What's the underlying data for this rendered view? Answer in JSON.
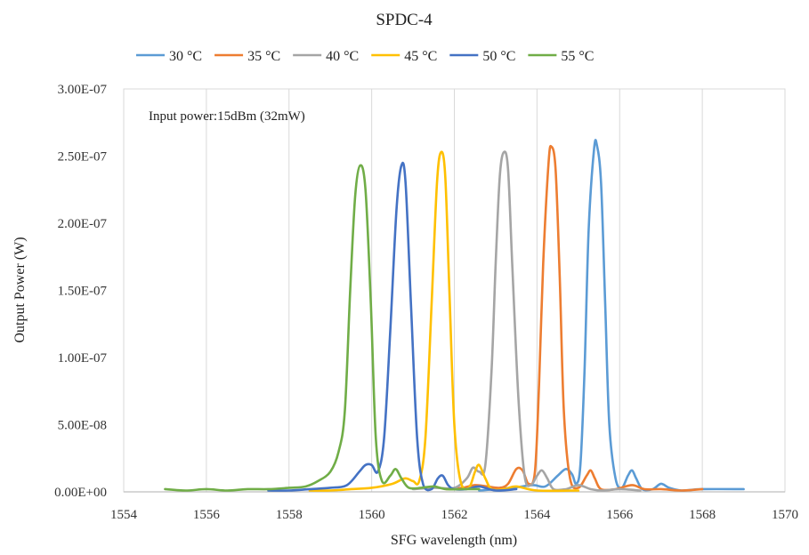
{
  "chart_data": {
    "type": "line",
    "title": "SPDC-4",
    "xlabel": "SFG wavelength (nm)",
    "ylabel": "Output Power (W)",
    "annotation": "Input power:15dBm (32mW)",
    "xlim": [
      1554,
      1570
    ],
    "ylim": [
      0,
      3e-07
    ],
    "xticks": [
      1554,
      1556,
      1558,
      1560,
      1562,
      1564,
      1566,
      1568,
      1570
    ],
    "xtick_labels": [
      "1554",
      "1556",
      "1558",
      "1560",
      "1562",
      "1564",
      "1566",
      "1568",
      "1570"
    ],
    "yticks": [
      0,
      5e-08,
      1e-07,
      1.5e-07,
      2e-07,
      2.5e-07,
      3e-07
    ],
    "ytick_labels": [
      "0.00E+00",
      "5.00E-08",
      "1.00E-07",
      "1.50E-07",
      "2.00E-07",
      "2.50E-07",
      "3.00E-07"
    ],
    "grid": "vertical",
    "legend_position": "top",
    "series": [
      {
        "name": "30 °C",
        "color": "#5b9bd5",
        "points": [
          [
            1562.6,
            1e-09
          ],
          [
            1563.4,
            3e-09
          ],
          [
            1563.9,
            5e-09
          ],
          [
            1564.2,
            4e-09
          ],
          [
            1564.5,
            1.2e-08
          ],
          [
            1564.7,
            1.7e-08
          ],
          [
            1564.85,
            1.3e-08
          ],
          [
            1564.95,
            6e-09
          ],
          [
            1565.05,
            2e-08
          ],
          [
            1565.15,
            9e-08
          ],
          [
            1565.25,
            1.95e-07
          ],
          [
            1565.38,
            2.55e-07
          ],
          [
            1565.45,
            2.58e-07
          ],
          [
            1565.55,
            2.3e-07
          ],
          [
            1565.65,
            1.4e-07
          ],
          [
            1565.75,
            5e-08
          ],
          [
            1565.9,
            1e-08
          ],
          [
            1566.05,
            3e-09
          ],
          [
            1566.2,
            1.2e-08
          ],
          [
            1566.3,
            1.6e-08
          ],
          [
            1566.4,
            1e-08
          ],
          [
            1566.55,
            2e-09
          ],
          [
            1566.8,
            2e-09
          ],
          [
            1567.0,
            6e-09
          ],
          [
            1567.2,
            3e-09
          ],
          [
            1567.5,
            1e-09
          ],
          [
            1568.0,
            2e-09
          ],
          [
            1569.0,
            2e-09
          ]
        ]
      },
      {
        "name": "35 °C",
        "color": "#ed7d31",
        "points": [
          [
            1561.8,
            2e-09
          ],
          [
            1562.2,
            3e-09
          ],
          [
            1562.5,
            5e-09
          ],
          [
            1562.8,
            4e-09
          ],
          [
            1563.1,
            3e-09
          ],
          [
            1563.3,
            6e-09
          ],
          [
            1563.5,
            1.7e-08
          ],
          [
            1563.65,
            1.6e-08
          ],
          [
            1563.8,
            6e-09
          ],
          [
            1563.95,
            1.5e-08
          ],
          [
            1564.05,
            8e-08
          ],
          [
            1564.15,
            1.7e-07
          ],
          [
            1564.28,
            2.45e-07
          ],
          [
            1564.35,
            2.57e-07
          ],
          [
            1564.45,
            2.4e-07
          ],
          [
            1564.55,
            1.6e-07
          ],
          [
            1564.65,
            6e-08
          ],
          [
            1564.8,
            1e-08
          ],
          [
            1565.0,
            3e-09
          ],
          [
            1565.2,
            1.2e-08
          ],
          [
            1565.3,
            1.6e-08
          ],
          [
            1565.4,
            1e-08
          ],
          [
            1565.55,
            2e-09
          ],
          [
            1565.9,
            2e-09
          ],
          [
            1566.3,
            5e-09
          ],
          [
            1566.6,
            2e-09
          ],
          [
            1567.0,
            2e-09
          ],
          [
            1567.5,
            1e-09
          ],
          [
            1568.0,
            2e-09
          ]
        ]
      },
      {
        "name": "40 °C",
        "color": "#a5a5a5",
        "points": [
          [
            1561.0,
            2e-09
          ],
          [
            1561.5,
            3e-09
          ],
          [
            1562.0,
            3e-09
          ],
          [
            1562.3,
            1e-08
          ],
          [
            1562.45,
            1.8e-08
          ],
          [
            1562.6,
            1.5e-08
          ],
          [
            1562.75,
            2e-08
          ],
          [
            1562.9,
            9e-08
          ],
          [
            1563.0,
            1.7e-07
          ],
          [
            1563.1,
            2.35e-07
          ],
          [
            1563.2,
            2.53e-07
          ],
          [
            1563.3,
            2.4e-07
          ],
          [
            1563.4,
            1.7e-07
          ],
          [
            1563.55,
            7e-08
          ],
          [
            1563.7,
            1.2e-08
          ],
          [
            1563.85,
            5e-09
          ],
          [
            1564.0,
            1.2e-08
          ],
          [
            1564.12,
            1.6e-08
          ],
          [
            1564.25,
            1e-08
          ],
          [
            1564.4,
            2e-09
          ],
          [
            1564.7,
            2e-09
          ],
          [
            1565.0,
            5e-09
          ],
          [
            1565.3,
            2e-09
          ],
          [
            1565.6,
            1e-09
          ],
          [
            1566.0,
            2e-09
          ],
          [
            1566.5,
            1e-09
          ]
        ]
      },
      {
        "name": "45 °C",
        "color": "#ffc000",
        "points": [
          [
            1558.5,
            1e-09
          ],
          [
            1559.0,
            1e-09
          ],
          [
            1559.5,
            2e-09
          ],
          [
            1560.0,
            3e-09
          ],
          [
            1560.5,
            6e-09
          ],
          [
            1560.8,
            1e-08
          ],
          [
            1561.0,
            8e-09
          ],
          [
            1561.15,
            8e-09
          ],
          [
            1561.3,
            4e-08
          ],
          [
            1561.45,
            1.4e-07
          ],
          [
            1561.58,
            2.3e-07
          ],
          [
            1561.68,
            2.53e-07
          ],
          [
            1561.78,
            2.35e-07
          ],
          [
            1561.88,
            1.5e-07
          ],
          [
            1562.0,
            5e-08
          ],
          [
            1562.15,
            8e-09
          ],
          [
            1562.35,
            3e-09
          ],
          [
            1562.5,
            1.5e-08
          ],
          [
            1562.6,
            2e-08
          ],
          [
            1562.75,
            1e-08
          ],
          [
            1562.9,
            2e-09
          ],
          [
            1563.2,
            2e-09
          ],
          [
            1563.5,
            4e-09
          ],
          [
            1564.0,
            1e-09
          ],
          [
            1565.0,
            1e-09
          ]
        ]
      },
      {
        "name": "50 °C",
        "color": "#4472c4",
        "points": [
          [
            1557.5,
            1e-09
          ],
          [
            1558.0,
            1e-09
          ],
          [
            1558.5,
            2e-09
          ],
          [
            1559.0,
            3e-09
          ],
          [
            1559.4,
            5e-09
          ],
          [
            1559.7,
            1.5e-08
          ],
          [
            1559.85,
            2e-08
          ],
          [
            1560.0,
            2e-08
          ],
          [
            1560.15,
            1.5e-08
          ],
          [
            1560.3,
            4e-08
          ],
          [
            1560.45,
            1.2e-07
          ],
          [
            1560.6,
            2.1e-07
          ],
          [
            1560.72,
            2.43e-07
          ],
          [
            1560.82,
            2.3e-07
          ],
          [
            1560.95,
            1.4e-07
          ],
          [
            1561.1,
            4e-08
          ],
          [
            1561.25,
            5e-09
          ],
          [
            1561.45,
            2e-09
          ],
          [
            1561.6,
            1e-08
          ],
          [
            1561.72,
            1.2e-08
          ],
          [
            1561.85,
            5e-09
          ],
          [
            1562.0,
            2e-09
          ],
          [
            1562.3,
            2e-09
          ],
          [
            1562.6,
            4e-09
          ],
          [
            1563.0,
            1e-09
          ],
          [
            1563.5,
            2e-09
          ]
        ]
      },
      {
        "name": "55 °C",
        "color": "#70ad47",
        "points": [
          [
            1555.0,
            2e-09
          ],
          [
            1555.5,
            1e-09
          ],
          [
            1556.0,
            2e-09
          ],
          [
            1556.5,
            1e-09
          ],
          [
            1557.0,
            2e-09
          ],
          [
            1557.5,
            2e-09
          ],
          [
            1558.0,
            3e-09
          ],
          [
            1558.4,
            4e-09
          ],
          [
            1558.7,
            8e-09
          ],
          [
            1559.0,
            1.5e-08
          ],
          [
            1559.2,
            3e-08
          ],
          [
            1559.35,
            6e-08
          ],
          [
            1559.48,
            1.5e-07
          ],
          [
            1559.6,
            2.2e-07
          ],
          [
            1559.72,
            2.43e-07
          ],
          [
            1559.85,
            2.25e-07
          ],
          [
            1559.98,
            1.4e-07
          ],
          [
            1560.1,
            4e-08
          ],
          [
            1560.25,
            8e-09
          ],
          [
            1560.45,
            1.2e-08
          ],
          [
            1560.58,
            1.7e-08
          ],
          [
            1560.72,
            1e-08
          ],
          [
            1560.9,
            3e-09
          ],
          [
            1561.2,
            3e-09
          ],
          [
            1561.5,
            4e-09
          ],
          [
            1561.8,
            2e-09
          ],
          [
            1562.2,
            2e-09
          ],
          [
            1562.6,
            2e-09
          ]
        ]
      }
    ]
  }
}
